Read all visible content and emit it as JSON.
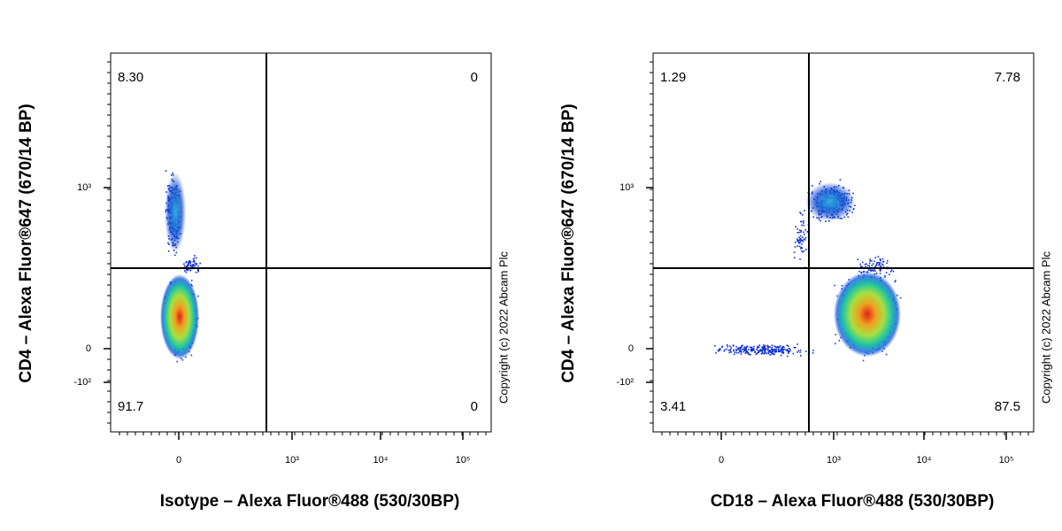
{
  "panels": [
    {
      "y_axis_label": "CD4 – Alexa Fluor®647 (670/14 BP)",
      "x_axis_label": "Isotype – Alexa Fluor®488 (530/30BP)",
      "y_tick_labels": [
        "10³",
        "0",
        "-10²"
      ],
      "x_tick_labels": [
        "0",
        "10³",
        "10⁴",
        "10⁵"
      ],
      "quadrants": {
        "upper_left": "8.30",
        "upper_right": "0",
        "lower_left": "91.7",
        "lower_right": "0"
      },
      "copyright": "Copyright (c) 2022 Abcam Plc"
    },
    {
      "y_axis_label": "CD4 – Alexa Fluor®647 (670/14 BP)",
      "x_axis_label": "CD18 – Alexa Fluor®488 (530/30BP)",
      "y_tick_labels": [
        "10³",
        "0",
        "-10²"
      ],
      "x_tick_labels": [
        "0",
        "10³",
        "10⁴",
        "10⁵"
      ],
      "quadrants": {
        "upper_left": "1.29",
        "upper_right": "7.78",
        "lower_left": "3.41",
        "lower_right": "87.5"
      },
      "copyright": "Copyright (c) 2022 Abcam Plc"
    }
  ]
}
